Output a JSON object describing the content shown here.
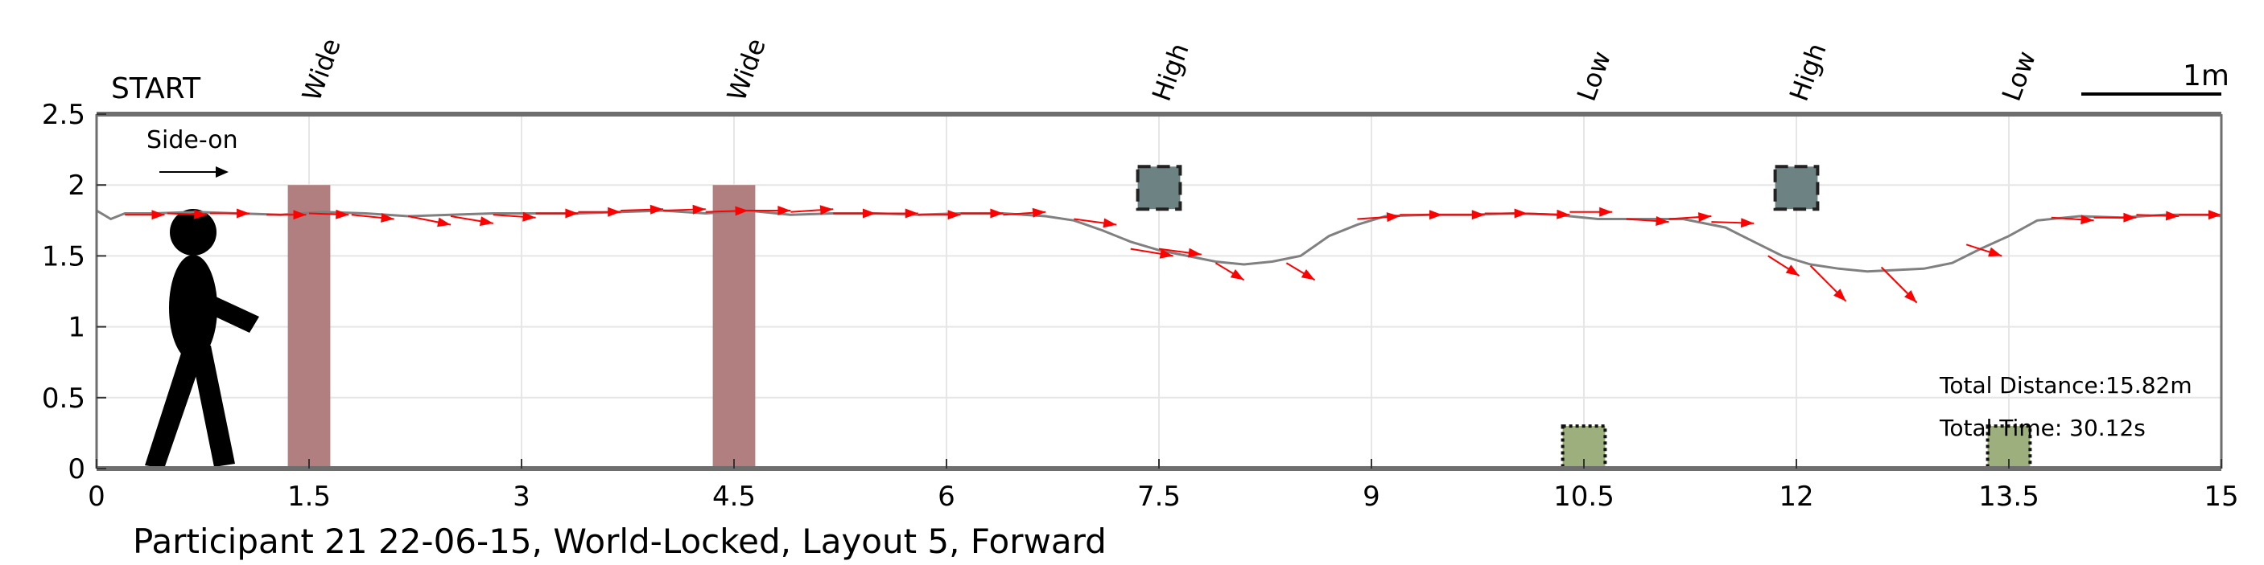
{
  "colors": {
    "axis": "#6e6e6e",
    "grid": "#e6e6e6",
    "path": "#808080",
    "arrow": "#ff0000",
    "wide_obstacle": "#b17f7f",
    "high_obstacle": "#6d8283",
    "low_obstacle": "#9caf7c",
    "figure": "#000000"
  },
  "chart_data": {
    "type": "line",
    "title": "Participant 21 22-06-15, World-Locked, Layout 5, Forward",
    "start_label": "START",
    "direction_label": "Side-on",
    "scale_label": "1m",
    "total_distance": "Total Distance:15.82m",
    "total_time": "Total Time: 30.12s",
    "xlim": [
      0,
      15
    ],
    "ylim": [
      0,
      2.5
    ],
    "xticks": [
      "0",
      "1.5",
      "3",
      "4.5",
      "6",
      "7.5",
      "9",
      "10.5",
      "12",
      "13.5",
      "15"
    ],
    "yticks": [
      "0",
      "0.5",
      "1",
      "1.5",
      "2",
      "2.5"
    ],
    "grid": true,
    "obstacles": [
      {
        "label": "Wide",
        "kind": "wide",
        "x": 1.5,
        "width": 0.3,
        "y0": 0,
        "y1": 2.0
      },
      {
        "label": "Wide",
        "kind": "wide",
        "x": 4.5,
        "width": 0.3,
        "y0": 0,
        "y1": 2.0
      },
      {
        "label": "High",
        "kind": "high",
        "x": 7.5,
        "width": 0.3,
        "y0": 1.83,
        "y1": 2.13
      },
      {
        "label": "Low",
        "kind": "low",
        "x": 10.5,
        "width": 0.3,
        "y0": 0,
        "y1": 0.3
      },
      {
        "label": "High",
        "kind": "high",
        "x": 12.0,
        "width": 0.3,
        "y0": 1.83,
        "y1": 2.13
      },
      {
        "label": "Low",
        "kind": "low",
        "x": 13.5,
        "width": 0.3,
        "y0": 0,
        "y1": 0.3
      }
    ],
    "series": [
      {
        "x": [
          0.0,
          0.1,
          0.2,
          0.4,
          0.7,
          1.0,
          1.3,
          1.6,
          1.9,
          2.2,
          2.5,
          2.8,
          3.1,
          3.4,
          3.7,
          4.0,
          4.3,
          4.6,
          4.9,
          5.2,
          5.5,
          5.8,
          6.1,
          6.4,
          6.7,
          6.9,
          7.1,
          7.3,
          7.5,
          7.7,
          7.9,
          8.1,
          8.3,
          8.5,
          8.7,
          8.9,
          9.1,
          9.4,
          9.7,
          10.0,
          10.3,
          10.6,
          10.9,
          11.2,
          11.5,
          11.7,
          11.9,
          12.1,
          12.3,
          12.5,
          12.7,
          12.9,
          13.1,
          13.3,
          13.5,
          13.7,
          14.0,
          14.3,
          14.6,
          14.9,
          15.0
        ],
        "y": [
          1.82,
          1.76,
          1.8,
          1.8,
          1.81,
          1.8,
          1.79,
          1.81,
          1.8,
          1.78,
          1.79,
          1.8,
          1.8,
          1.8,
          1.81,
          1.82,
          1.8,
          1.82,
          1.79,
          1.8,
          1.8,
          1.79,
          1.8,
          1.8,
          1.78,
          1.75,
          1.68,
          1.6,
          1.54,
          1.5,
          1.46,
          1.44,
          1.46,
          1.5,
          1.64,
          1.72,
          1.78,
          1.79,
          1.79,
          1.8,
          1.79,
          1.76,
          1.76,
          1.76,
          1.7,
          1.6,
          1.5,
          1.44,
          1.41,
          1.39,
          1.4,
          1.41,
          1.45,
          1.55,
          1.64,
          1.75,
          1.78,
          1.77,
          1.79,
          1.79,
          1.78
        ]
      }
    ],
    "arrows": [
      {
        "x": 0.2,
        "y": 1.79,
        "dx": 0.28,
        "dy": 0.0
      },
      {
        "x": 0.5,
        "y": 1.8,
        "dx": 0.28,
        "dy": -0.01
      },
      {
        "x": 0.8,
        "y": 1.8,
        "dx": 0.28,
        "dy": 0.0
      },
      {
        "x": 1.2,
        "y": 1.79,
        "dx": 0.28,
        "dy": 0.0
      },
      {
        "x": 1.5,
        "y": 1.8,
        "dx": 0.28,
        "dy": -0.01
      },
      {
        "x": 1.8,
        "y": 1.79,
        "dx": 0.3,
        "dy": -0.03
      },
      {
        "x": 2.2,
        "y": 1.78,
        "dx": 0.3,
        "dy": -0.06
      },
      {
        "x": 2.5,
        "y": 1.78,
        "dx": 0.3,
        "dy": -0.05
      },
      {
        "x": 2.8,
        "y": 1.79,
        "dx": 0.3,
        "dy": -0.02
      },
      {
        "x": 3.1,
        "y": 1.8,
        "dx": 0.3,
        "dy": 0.0
      },
      {
        "x": 3.4,
        "y": 1.81,
        "dx": 0.3,
        "dy": 0.0
      },
      {
        "x": 3.7,
        "y": 1.82,
        "dx": 0.3,
        "dy": 0.01
      },
      {
        "x": 4.0,
        "y": 1.82,
        "dx": 0.3,
        "dy": 0.01
      },
      {
        "x": 4.3,
        "y": 1.81,
        "dx": 0.3,
        "dy": 0.01
      },
      {
        "x": 4.6,
        "y": 1.82,
        "dx": 0.3,
        "dy": 0.0
      },
      {
        "x": 4.9,
        "y": 1.81,
        "dx": 0.3,
        "dy": 0.02
      },
      {
        "x": 5.2,
        "y": 1.8,
        "dx": 0.3,
        "dy": 0.0
      },
      {
        "x": 5.5,
        "y": 1.8,
        "dx": 0.3,
        "dy": 0.0
      },
      {
        "x": 5.8,
        "y": 1.79,
        "dx": 0.3,
        "dy": 0.0
      },
      {
        "x": 6.1,
        "y": 1.8,
        "dx": 0.3,
        "dy": 0.0
      },
      {
        "x": 6.4,
        "y": 1.79,
        "dx": 0.3,
        "dy": 0.02
      },
      {
        "x": 6.9,
        "y": 1.76,
        "dx": 0.3,
        "dy": -0.04
      },
      {
        "x": 7.3,
        "y": 1.55,
        "dx": 0.3,
        "dy": -0.05
      },
      {
        "x": 7.5,
        "y": 1.55,
        "dx": 0.3,
        "dy": -0.04
      },
      {
        "x": 7.9,
        "y": 1.45,
        "dx": 0.2,
        "dy": -0.12
      },
      {
        "x": 8.4,
        "y": 1.45,
        "dx": 0.2,
        "dy": -0.12
      },
      {
        "x": 8.9,
        "y": 1.76,
        "dx": 0.3,
        "dy": 0.02
      },
      {
        "x": 9.2,
        "y": 1.79,
        "dx": 0.3,
        "dy": 0.0
      },
      {
        "x": 9.5,
        "y": 1.79,
        "dx": 0.3,
        "dy": 0.0
      },
      {
        "x": 9.8,
        "y": 1.8,
        "dx": 0.3,
        "dy": 0.0
      },
      {
        "x": 10.1,
        "y": 1.8,
        "dx": 0.3,
        "dy": -0.01
      },
      {
        "x": 10.4,
        "y": 1.81,
        "dx": 0.3,
        "dy": 0.0
      },
      {
        "x": 10.8,
        "y": 1.76,
        "dx": 0.3,
        "dy": -0.02
      },
      {
        "x": 11.1,
        "y": 1.76,
        "dx": 0.3,
        "dy": 0.02
      },
      {
        "x": 11.4,
        "y": 1.74,
        "dx": 0.3,
        "dy": -0.01
      },
      {
        "x": 11.8,
        "y": 1.5,
        "dx": 0.22,
        "dy": -0.14
      },
      {
        "x": 12.1,
        "y": 1.43,
        "dx": 0.25,
        "dy": -0.25
      },
      {
        "x": 12.6,
        "y": 1.42,
        "dx": 0.25,
        "dy": -0.25
      },
      {
        "x": 13.2,
        "y": 1.58,
        "dx": 0.25,
        "dy": -0.08
      },
      {
        "x": 13.8,
        "y": 1.77,
        "dx": 0.3,
        "dy": -0.02
      },
      {
        "x": 14.1,
        "y": 1.77,
        "dx": 0.3,
        "dy": 0.0
      },
      {
        "x": 14.4,
        "y": 1.79,
        "dx": 0.3,
        "dy": -0.01
      },
      {
        "x": 14.7,
        "y": 1.79,
        "dx": 0.3,
        "dy": 0.0
      }
    ]
  }
}
